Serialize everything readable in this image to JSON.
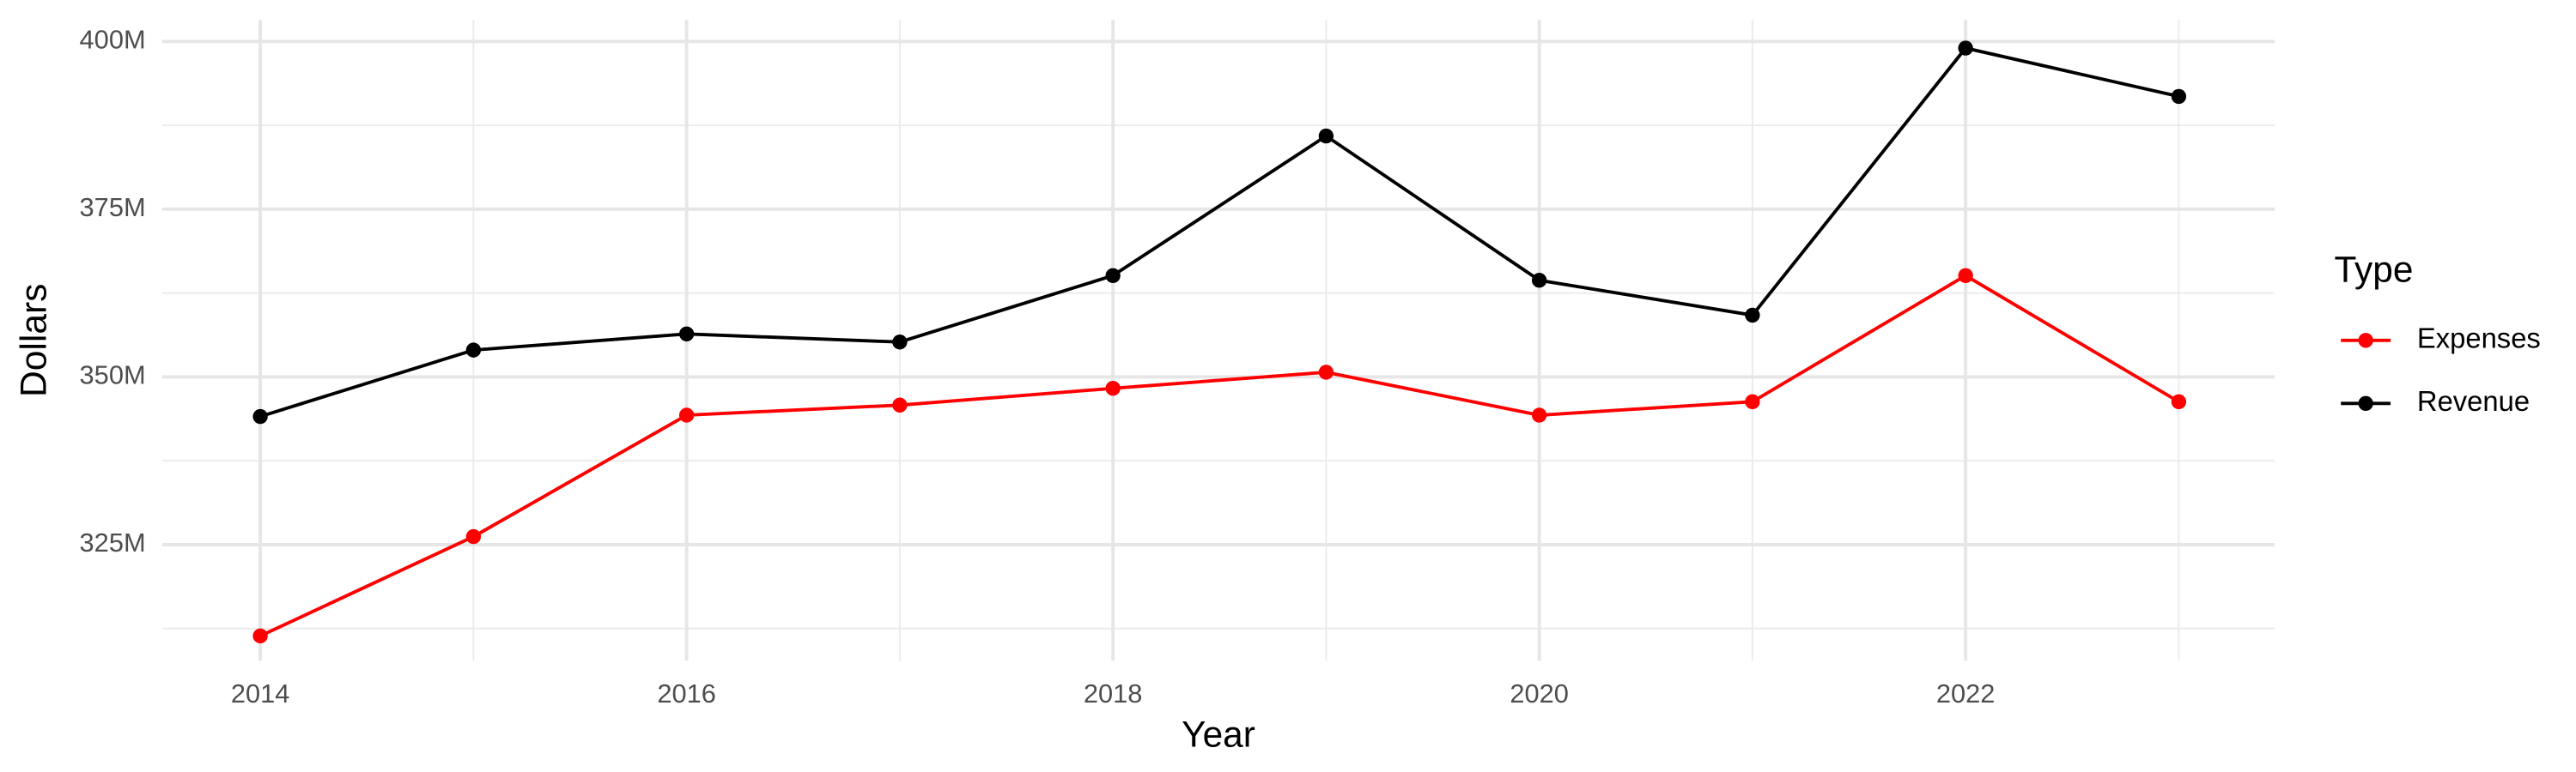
{
  "chart_data": {
    "type": "line",
    "x_label": "Year",
    "y_label": "Dollars",
    "x": [
      2014,
      2015,
      2016,
      2017,
      2018,
      2019,
      2020,
      2021,
      2022,
      2023
    ],
    "series": [
      {
        "name": "Expenses",
        "color": "#ff0000",
        "values": [
          311400000,
          326200000,
          344300000,
          345800000,
          348300000,
          350700000,
          344300000,
          346300000,
          365100000,
          346300000
        ]
      },
      {
        "name": "Revenue",
        "color": "#000000",
        "values": [
          344100000,
          354000000,
          356400000,
          355200000,
          365100000,
          385900000,
          364400000,
          359200000,
          399000000,
          391800000
        ]
      }
    ],
    "xlim": [
      2013.54,
      2023.45
    ],
    "xticks": [
      2014,
      2016,
      2018,
      2020,
      2022
    ],
    "ylim": [
      307700000,
      403200000
    ],
    "yticks": [
      {
        "value": 325000000,
        "label": "325M"
      },
      {
        "value": 350000000,
        "label": "350M"
      },
      {
        "value": 375000000,
        "label": "375M"
      },
      {
        "value": 400000000,
        "label": "400M"
      }
    ],
    "grid": true,
    "legend": "right",
    "legend_title": "Type"
  }
}
